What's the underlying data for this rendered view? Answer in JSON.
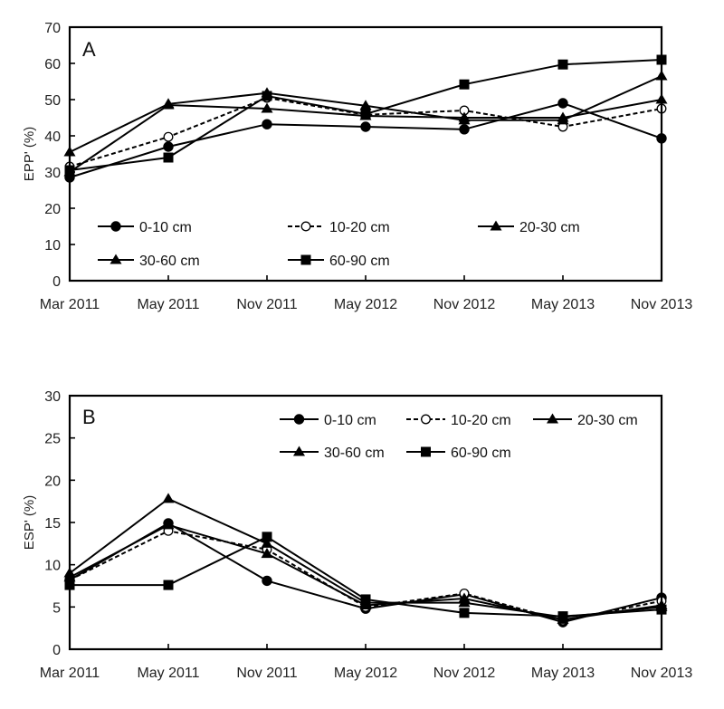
{
  "chart_data": [
    {
      "type": "line",
      "panel_label": "A",
      "title": "",
      "xlabel": "",
      "ylabel": "EPP' (%)",
      "ylim": [
        0,
        70
      ],
      "yticks": [
        0,
        10,
        20,
        30,
        40,
        50,
        60,
        70
      ],
      "grid": false,
      "legend_position": "bottom-left",
      "categories": [
        "Mar 2011",
        "May 2011",
        "Nov 2011",
        "May 2012",
        "Nov 2012",
        "May 2013",
        "Nov 2013"
      ],
      "series": [
        {
          "name": "0-10 cm",
          "marker": "filled-circle",
          "line": "solid",
          "values": [
            28.5,
            37.0,
            43.2,
            42.5,
            41.8,
            49.0,
            39.3
          ]
        },
        {
          "name": "10-20 cm",
          "marker": "open-circle",
          "line": "dashed",
          "values": [
            31.5,
            39.7,
            50.5,
            45.8,
            47.0,
            42.5,
            47.5
          ]
        },
        {
          "name": "20-30 cm",
          "marker": "filled-triangle",
          "line": "solid",
          "values": [
            30.0,
            48.5,
            47.5,
            45.5,
            45.0,
            45.0,
            50.0
          ]
        },
        {
          "name": "30-60 cm",
          "marker": "filled-triangle",
          "line": "solid",
          "values": [
            35.5,
            48.8,
            51.8,
            48.3,
            44.3,
            44.3,
            56.5
          ]
        },
        {
          "name": "60-90 cm",
          "marker": "filled-square",
          "line": "solid",
          "values": [
            30.5,
            34.0,
            51.0,
            46.0,
            54.2,
            59.7,
            61.0
          ]
        }
      ]
    },
    {
      "type": "line",
      "panel_label": "B",
      "title": "",
      "xlabel": "",
      "ylabel": "ESP' (%)",
      "ylim": [
        0,
        30
      ],
      "yticks": [
        0,
        5,
        10,
        15,
        20,
        25,
        30
      ],
      "grid": false,
      "legend_position": "top-right",
      "categories": [
        "Mar 2011",
        "May 2011",
        "Nov 2011",
        "May 2012",
        "Nov 2012",
        "May 2013",
        "Nov 2013"
      ],
      "series": [
        {
          "name": "0-10 cm",
          "marker": "filled-circle",
          "line": "solid",
          "values": [
            8.2,
            14.9,
            8.1,
            4.8,
            6.5,
            3.2,
            6.1
          ]
        },
        {
          "name": "10-20 cm",
          "marker": "open-circle",
          "line": "dashed",
          "values": [
            8.2,
            14.0,
            11.8,
            5.0,
            6.6,
            3.4,
            5.7
          ]
        },
        {
          "name": "20-30 cm",
          "marker": "filled-triangle",
          "line": "solid",
          "values": [
            8.5,
            14.7,
            11.3,
            5.2,
            6.0,
            3.5,
            5.2
          ]
        },
        {
          "name": "30-60 cm",
          "marker": "filled-triangle",
          "line": "solid",
          "values": [
            9.0,
            17.8,
            12.5,
            5.5,
            5.5,
            3.8,
            5.0
          ]
        },
        {
          "name": "60-90 cm",
          "marker": "filled-square",
          "line": "solid",
          "values": [
            7.6,
            7.6,
            13.3,
            5.9,
            4.3,
            3.9,
            4.7
          ]
        }
      ]
    }
  ]
}
